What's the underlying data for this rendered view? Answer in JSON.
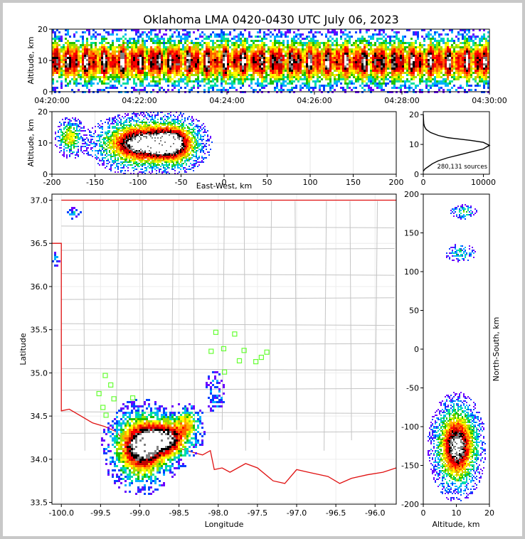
{
  "title": "Oklahoma LMA 0420-0430 UTC July 06, 2023",
  "colormap": [
    "#6a00ff",
    "#0040ff",
    "#00b0ff",
    "#00e0a0",
    "#20c000",
    "#a0e000",
    "#ffff00",
    "#ffb000",
    "#ff6000",
    "#ff0000",
    "#c00000",
    "#000000",
    "#808080",
    "#ffffff"
  ],
  "chart_data": [
    {
      "id": "time_height",
      "type": "heatmap",
      "xlabel": "",
      "ylabel": "Altitude, km",
      "x_ticks": [
        "04:20:00",
        "04:22:00",
        "04:24:00",
        "04:26:00",
        "04:28:00",
        "04:30:00"
      ],
      "ylim": [
        0,
        20
      ],
      "y_ticks": [
        0,
        10,
        20
      ],
      "density_peak_altitude_km": 10
    },
    {
      "id": "east_west_height",
      "type": "heatmap",
      "xlabel": "East-West, km",
      "ylabel": "Altitude, km",
      "xlim": [
        -200,
        200
      ],
      "x_ticks": [
        -200,
        -150,
        -100,
        -50,
        0,
        50,
        100,
        150,
        200
      ],
      "ylim": [
        0,
        20
      ],
      "y_ticks": [
        0,
        10,
        20
      ],
      "grid": true,
      "clusters": [
        {
          "x": -180,
          "alt": 12,
          "sx": 8,
          "sy": 3,
          "w": 0.5
        },
        {
          "x": -100,
          "alt": 10,
          "sx": 25,
          "sy": 4,
          "w": 1.0
        },
        {
          "x": -60,
          "alt": 10,
          "sx": 18,
          "sy": 4,
          "w": 0.9
        }
      ]
    },
    {
      "id": "altitude_histogram",
      "type": "line",
      "xlabel": "",
      "ylabel": "",
      "xlim": [
        0,
        11000
      ],
      "x_ticks": [
        0,
        10000
      ],
      "ylim": [
        0,
        21
      ],
      "y_ticks": [
        0,
        10,
        20
      ],
      "annotation": "280,131 sources",
      "x": [
        0,
        300,
        800,
        1500,
        2500,
        4000,
        6000,
        8000,
        10000,
        11000,
        10000,
        8000,
        6000,
        4000,
        2500,
        1200,
        500,
        200,
        80,
        30,
        10
      ],
      "y": [
        1,
        1.8,
        2.5,
        3.5,
        4.5,
        5.5,
        6.5,
        7.5,
        8.5,
        9.7,
        10.7,
        11.3,
        11.8,
        12.3,
        13,
        14,
        15,
        16,
        17,
        18.5,
        20
      ]
    },
    {
      "id": "plan_view",
      "type": "scatter",
      "xlabel": "Longitude",
      "ylabel": "Latitude",
      "xlim": [
        -100.12,
        -95.73
      ],
      "x_ticks": [
        -100.0,
        -99.5,
        -99.0,
        -98.5,
        -98.0,
        -97.5,
        -97.0,
        -96.5,
        -96.0
      ],
      "ylim": [
        33.48,
        37.07
      ],
      "y_ticks": [
        33.5,
        34.0,
        34.5,
        35.0,
        35.5,
        36.0,
        36.5,
        37.0
      ],
      "grid": true,
      "stations": [
        [
          -99.44,
          34.97
        ],
        [
          -99.37,
          34.86
        ],
        [
          -99.33,
          34.7
        ],
        [
          -99.52,
          34.76
        ],
        [
          -99.47,
          34.6
        ],
        [
          -99.43,
          34.51
        ],
        [
          -99.09,
          34.71
        ],
        [
          -98.09,
          35.25
        ],
        [
          -98.03,
          35.47
        ],
        [
          -97.93,
          35.28
        ],
        [
          -97.92,
          35.01
        ],
        [
          -97.79,
          35.45
        ],
        [
          -97.73,
          35.14
        ],
        [
          -97.67,
          35.26
        ],
        [
          -97.52,
          35.13
        ],
        [
          -97.45,
          35.18
        ],
        [
          -97.38,
          35.24
        ]
      ],
      "clusters": [
        {
          "lon": -99.0,
          "lat": 34.15,
          "sx": 0.2,
          "sy": 0.22,
          "w": 1.0
        },
        {
          "lon": -98.65,
          "lat": 34.25,
          "sx": 0.18,
          "sy": 0.14,
          "w": 0.8
        },
        {
          "lon": -98.4,
          "lat": 34.45,
          "sx": 0.1,
          "sy": 0.1,
          "w": 0.4
        },
        {
          "lon": -98.05,
          "lat": 34.8,
          "sx": 0.08,
          "sy": 0.15,
          "w": 0.15
        },
        {
          "lon": -99.85,
          "lat": 36.86,
          "sx": 0.05,
          "sy": 0.04,
          "w": 0.2
        },
        {
          "lon": -100.08,
          "lat": 36.35,
          "sx": 0.03,
          "sy": 0.07,
          "w": 0.15
        }
      ]
    },
    {
      "id": "north_south_height",
      "type": "heatmap",
      "xlabel": "Altitude, km",
      "ylabel": "North-South, km",
      "xlim": [
        0,
        20
      ],
      "x_ticks": [
        0,
        10,
        20
      ],
      "ylim": [
        -200,
        200
      ],
      "y_ticks": [
        -200,
        -150,
        -100,
        -50,
        0,
        50,
        100,
        150,
        200
      ],
      "clusters": [
        {
          "alt": 10,
          "y": -125,
          "sx": 3.5,
          "sy": 28,
          "w": 1.0
        },
        {
          "alt": 12,
          "y": 178,
          "sx": 2,
          "sy": 5,
          "w": 0.3
        },
        {
          "alt": 11,
          "y": 125,
          "sx": 2.5,
          "sy": 6,
          "w": 0.25
        }
      ]
    }
  ]
}
